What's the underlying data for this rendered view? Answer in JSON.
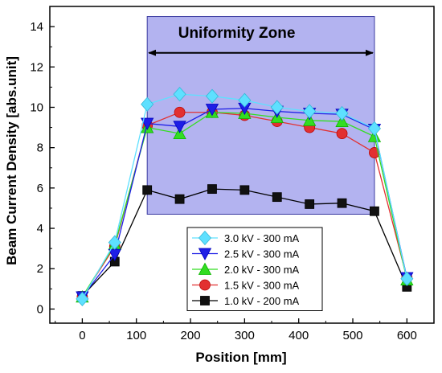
{
  "chart_data": {
    "type": "line",
    "title": "",
    "xlabel": "Position [mm]",
    "ylabel": "Beam Current Density [abs.unit]",
    "xlim": [
      -60,
      650
    ],
    "ylim": [
      -0.7,
      15
    ],
    "xticks": [
      0,
      100,
      200,
      300,
      400,
      500,
      600
    ],
    "yticks": [
      0,
      2,
      4,
      6,
      8,
      10,
      12,
      14
    ],
    "grid": false,
    "legend_position": "bottom-center",
    "annotation": {
      "label": "Uniformity Zone",
      "x_range": [
        120,
        540
      ],
      "y_range": [
        4.7,
        14.5
      ],
      "arrow_y": 12.7,
      "fill": "#8080e6"
    },
    "series": [
      {
        "name": "3.0 kV - 300 mA",
        "color": "#5ee0ff",
        "marker": "diamond",
        "x": [
          0,
          60,
          120,
          180,
          240,
          300,
          360,
          420,
          480,
          540,
          600
        ],
        "y": [
          0.5,
          3.3,
          10.15,
          10.65,
          10.55,
          10.35,
          10.0,
          9.8,
          9.7,
          8.95,
          1.5
        ]
      },
      {
        "name": "2.5 kV - 300 mA",
        "color": "#1e1ee6",
        "marker": "triangle-down",
        "x": [
          0,
          60,
          120,
          180,
          240,
          300,
          360,
          420,
          480,
          540,
          600
        ],
        "y": [
          0.6,
          2.7,
          9.2,
          9.05,
          9.9,
          9.95,
          9.8,
          9.7,
          9.65,
          8.9,
          1.55
        ]
      },
      {
        "name": "2.0 kV - 300 mA",
        "color": "#33dd22",
        "marker": "triangle-up",
        "x": [
          0,
          60,
          120,
          180,
          240,
          300,
          360,
          420,
          480,
          540,
          600
        ],
        "y": [
          0.6,
          3.2,
          9.0,
          8.7,
          9.75,
          9.7,
          9.5,
          9.35,
          9.3,
          8.55,
          1.45
        ]
      },
      {
        "name": "1.5 kV - 300 mA",
        "color": "#e23030",
        "marker": "circle",
        "x": [
          0,
          60,
          120,
          180,
          240,
          300,
          360,
          420,
          480,
          540,
          600
        ],
        "y": [
          0.6,
          3.1,
          9.1,
          9.75,
          9.75,
          9.6,
          9.3,
          9.0,
          8.7,
          7.75,
          1.55
        ]
      },
      {
        "name": "1.0 kV - 200 mA",
        "color": "#111111",
        "marker": "square",
        "x": [
          0,
          60,
          120,
          180,
          240,
          300,
          360,
          420,
          480,
          540,
          600
        ],
        "y": [
          0.65,
          2.35,
          5.9,
          5.45,
          5.95,
          5.9,
          5.55,
          5.2,
          5.25,
          4.85,
          1.1
        ]
      }
    ]
  }
}
